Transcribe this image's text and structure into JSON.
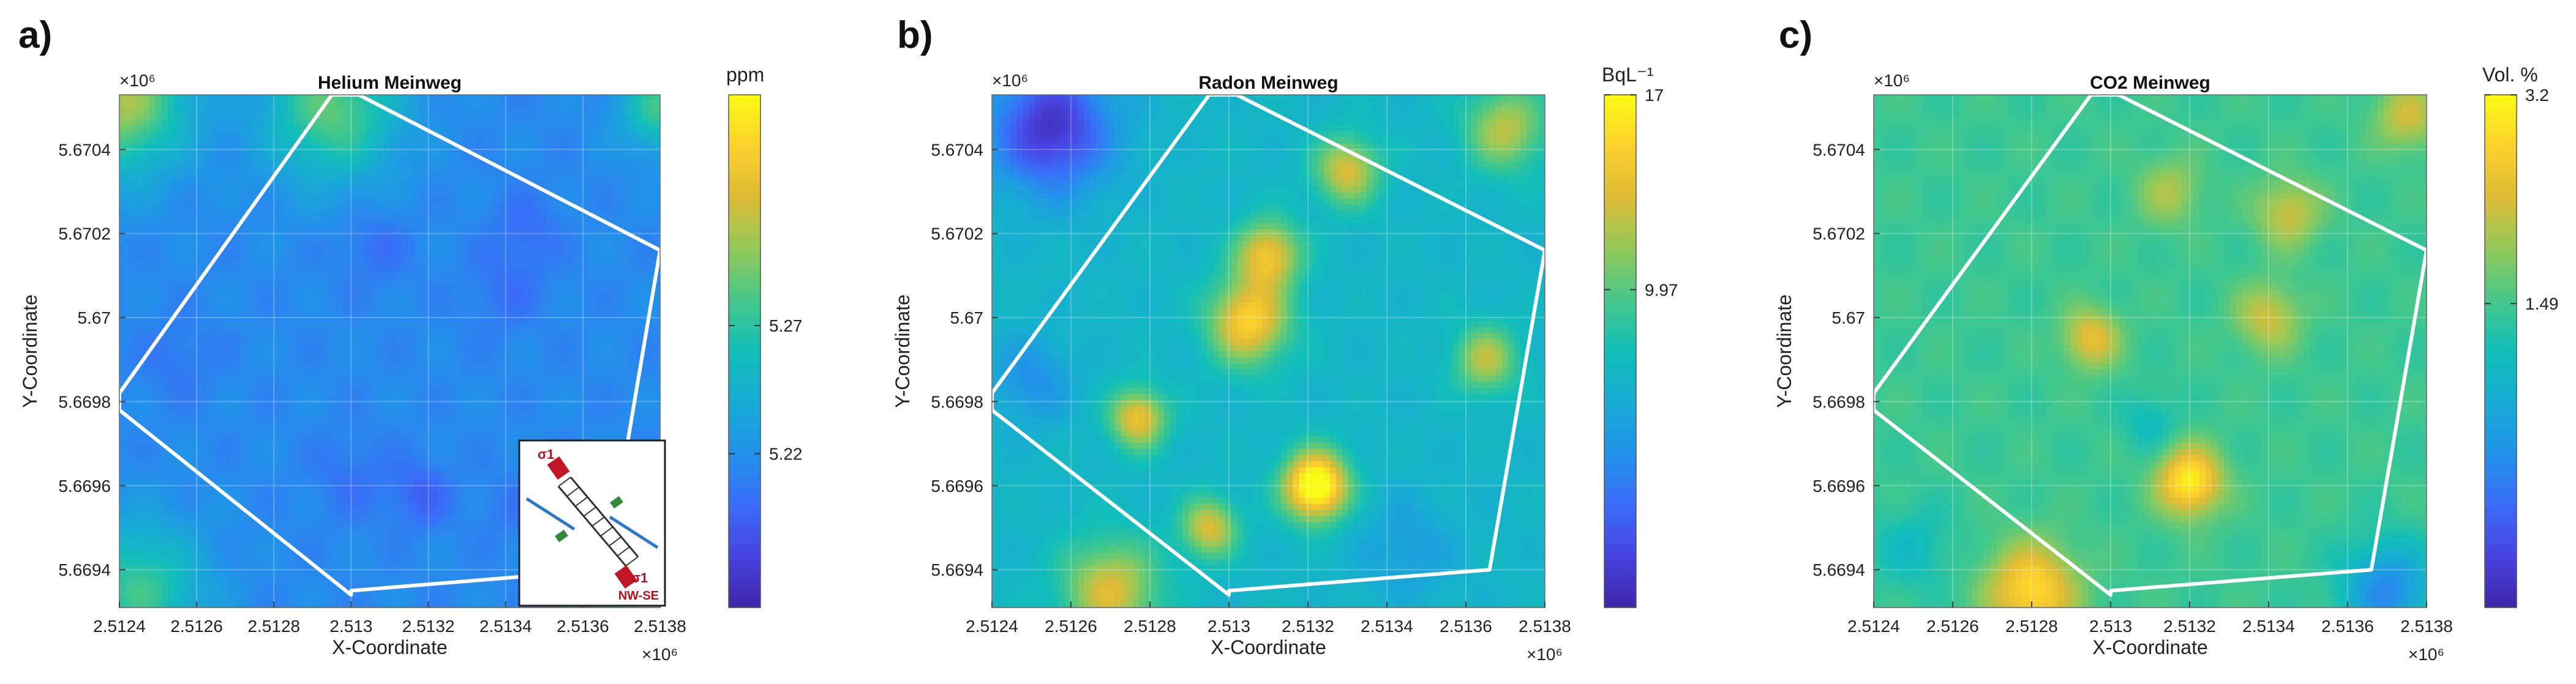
{
  "chart_data": [
    {
      "type": "heatmap",
      "panel": "a)",
      "title": "Helium Meinweg",
      "xlabel": "X-Coordinate",
      "ylabel": "Y-Coordinate",
      "x_exponent": "×10⁶",
      "y_exponent": "×10⁶",
      "xlim": [
        2.5124,
        2.5138
      ],
      "ylim": [
        5.66931,
        5.67053
      ],
      "xticks": [
        "2.5124",
        "2.5126",
        "2.5128",
        "2.513",
        "2.5132",
        "2.5134",
        "2.5136",
        "2.5138"
      ],
      "yticks": [
        "5.6694",
        "5.6696",
        "5.6698",
        "5.67",
        "5.6702",
        "5.6704"
      ],
      "colorbar": {
        "unit": "ppm",
        "ticks": [
          "5.27",
          "5.22"
        ],
        "tick_values": [
          5.27,
          5.22
        ],
        "range": [
          5.16,
          5.36
        ]
      },
      "colormap": "parula",
      "base_level": 0.28,
      "blobs": [
        {
          "x": 2.51306,
          "y": 5.67017,
          "amp": -0.07,
          "r": 9e-05
        },
        {
          "x": 2.51345,
          "y": 5.67021,
          "amp": -0.07,
          "r": 9e-05
        },
        {
          "x": 2.5134,
          "y": 5.67006,
          "amp": -0.06,
          "r": 0.0001
        },
        {
          "x": 2.51318,
          "y": 5.66958,
          "amp": -0.1,
          "r": 8e-05
        },
        {
          "x": 2.513,
          "y": 5.66962,
          "amp": -0.06,
          "r": 0.0001
        },
        {
          "x": 2.51342,
          "y": 5.66955,
          "amp": -0.05,
          "r": 8e-05
        },
        {
          "x": 2.51255,
          "y": 5.6699,
          "amp": -0.05,
          "r": 0.0001
        },
        {
          "x": 2.51295,
          "y": 5.6705,
          "amp": 0.35,
          "r": 0.00017
        },
        {
          "x": 2.5124,
          "y": 5.67052,
          "amp": 0.45,
          "r": 0.00017
        },
        {
          "x": 2.5138,
          "y": 5.6705,
          "amp": 0.3,
          "r": 0.0001
        },
        {
          "x": 2.51245,
          "y": 5.66935,
          "amp": 0.3,
          "r": 0.00016
        },
        {
          "x": 2.5138,
          "y": 5.66935,
          "amp": 0.4,
          "r": 0.00014
        }
      ],
      "polygon": [
        [
          2.5124,
          5.66982
        ],
        [
          2.51295,
          5.67053
        ],
        [
          2.51302,
          5.67053
        ],
        [
          2.5138,
          5.67016
        ],
        [
          2.51366,
          5.6694
        ],
        [
          2.513,
          5.66935
        ],
        [
          2.513,
          5.66934
        ],
        [
          2.5124,
          5.66978
        ]
      ],
      "inset": {
        "labels": [
          "σ1",
          "σ1",
          "NW-SE"
        ]
      }
    },
    {
      "type": "heatmap",
      "panel": "b)",
      "title": "Radon Meinweg",
      "xlabel": "X-Coordinate",
      "ylabel": "Y-Coordinate",
      "x_exponent": "×10⁶",
      "y_exponent": "×10⁶",
      "xlim": [
        2.5124,
        2.5138
      ],
      "ylim": [
        5.66931,
        5.67053
      ],
      "xticks": [
        "2.5124",
        "2.5126",
        "2.5128",
        "2.513",
        "2.5132",
        "2.5134",
        "2.5136",
        "2.5138"
      ],
      "yticks": [
        "5.6694",
        "5.6696",
        "5.6698",
        "5.67",
        "5.6702",
        "5.6704"
      ],
      "colorbar": {
        "unit": "BqL⁻¹",
        "ticks": [
          "17",
          "9.97"
        ],
        "tick_values": [
          17,
          9.97
        ],
        "range": [
          -1.5,
          17
        ]
      },
      "colormap": "parula",
      "base_level": 0.45,
      "blobs": [
        {
          "x": 2.51305,
          "y": 5.66999,
          "amp": 0.45,
          "r": 0.0001
        },
        {
          "x": 2.5131,
          "y": 5.67015,
          "amp": 0.4,
          "r": 8e-05
        },
        {
          "x": 2.51322,
          "y": 5.6696,
          "amp": 0.65,
          "r": 8e-05
        },
        {
          "x": 2.51277,
          "y": 5.66976,
          "amp": 0.4,
          "r": 7e-05
        },
        {
          "x": 2.51295,
          "y": 5.6695,
          "amp": 0.35,
          "r": 7e-05
        },
        {
          "x": 2.5133,
          "y": 5.67035,
          "amp": 0.35,
          "r": 8e-05
        },
        {
          "x": 2.51365,
          "y": 5.6699,
          "amp": 0.3,
          "r": 8e-05
        },
        {
          "x": 2.5127,
          "y": 5.66935,
          "amp": 0.35,
          "r": 0.00012
        },
        {
          "x": 2.51255,
          "y": 5.67045,
          "amp": -0.4,
          "r": 0.00015
        },
        {
          "x": 2.5137,
          "y": 5.67045,
          "amp": 0.3,
          "r": 0.0001
        },
        {
          "x": 2.5125,
          "y": 5.66985,
          "amp": -0.15,
          "r": 0.0001
        },
        {
          "x": 2.51345,
          "y": 5.66945,
          "amp": -0.1,
          "r": 0.00012
        }
      ],
      "polygon": [
        [
          2.5124,
          5.66982
        ],
        [
          2.51295,
          5.67053
        ],
        [
          2.51302,
          5.67053
        ],
        [
          2.5138,
          5.67016
        ],
        [
          2.51366,
          5.6694
        ],
        [
          2.513,
          5.66935
        ],
        [
          2.513,
          5.66934
        ],
        [
          2.5124,
          5.66978
        ]
      ]
    },
    {
      "type": "heatmap",
      "panel": "c)",
      "title": "CO2 Meinweg",
      "xlabel": "X-Coordinate",
      "ylabel": "Y-Coordinate",
      "x_exponent": "×10⁶",
      "y_exponent": "×10⁶",
      "xlim": [
        2.5124,
        2.5138
      ],
      "ylim": [
        5.66931,
        5.67053
      ],
      "xticks": [
        "2.5124",
        "2.5126",
        "2.5128",
        "2.513",
        "2.5132",
        "2.5134",
        "2.5136",
        "2.5138"
      ],
      "yticks": [
        "5.6694",
        "5.6696",
        "5.6698",
        "5.67",
        "5.6702",
        "5.6704"
      ],
      "colorbar": {
        "unit": "Vol. %",
        "ticks": [
          "3.2",
          "1.49"
        ],
        "tick_values": [
          3.2,
          1.49
        ],
        "range": [
          -1.0,
          3.2
        ]
      },
      "colormap": "parula",
      "base_level": 0.58,
      "blobs": [
        {
          "x": 2.5132,
          "y": 5.66961,
          "amp": 0.4,
          "r": 8e-05
        },
        {
          "x": 2.51295,
          "y": 5.66995,
          "amp": 0.25,
          "r": 7e-05
        },
        {
          "x": 2.5128,
          "y": 5.66935,
          "amp": 0.35,
          "r": 0.00011
        },
        {
          "x": 2.5134,
          "y": 5.67,
          "amp": 0.2,
          "r": 8e-05
        },
        {
          "x": 2.51345,
          "y": 5.67025,
          "amp": 0.2,
          "r": 8e-05
        },
        {
          "x": 2.51315,
          "y": 5.6703,
          "amp": 0.15,
          "r": 8e-05
        },
        {
          "x": 2.51375,
          "y": 5.67048,
          "amp": 0.2,
          "r": 8e-05
        },
        {
          "x": 2.5137,
          "y": 5.66935,
          "amp": -0.3,
          "r": 0.00011
        },
        {
          "x": 2.5125,
          "y": 5.66945,
          "amp": -0.1,
          "r": 0.0001
        },
        {
          "x": 2.5131,
          "y": 5.66975,
          "amp": -0.1,
          "r": 7e-05
        }
      ],
      "polygon": [
        [
          2.5124,
          5.66982
        ],
        [
          2.51295,
          5.67053
        ],
        [
          2.51302,
          5.67053
        ],
        [
          2.5138,
          5.67016
        ],
        [
          2.51366,
          5.6694
        ],
        [
          2.513,
          5.66935
        ],
        [
          2.513,
          5.66934
        ],
        [
          2.5124,
          5.66978
        ]
      ]
    }
  ]
}
